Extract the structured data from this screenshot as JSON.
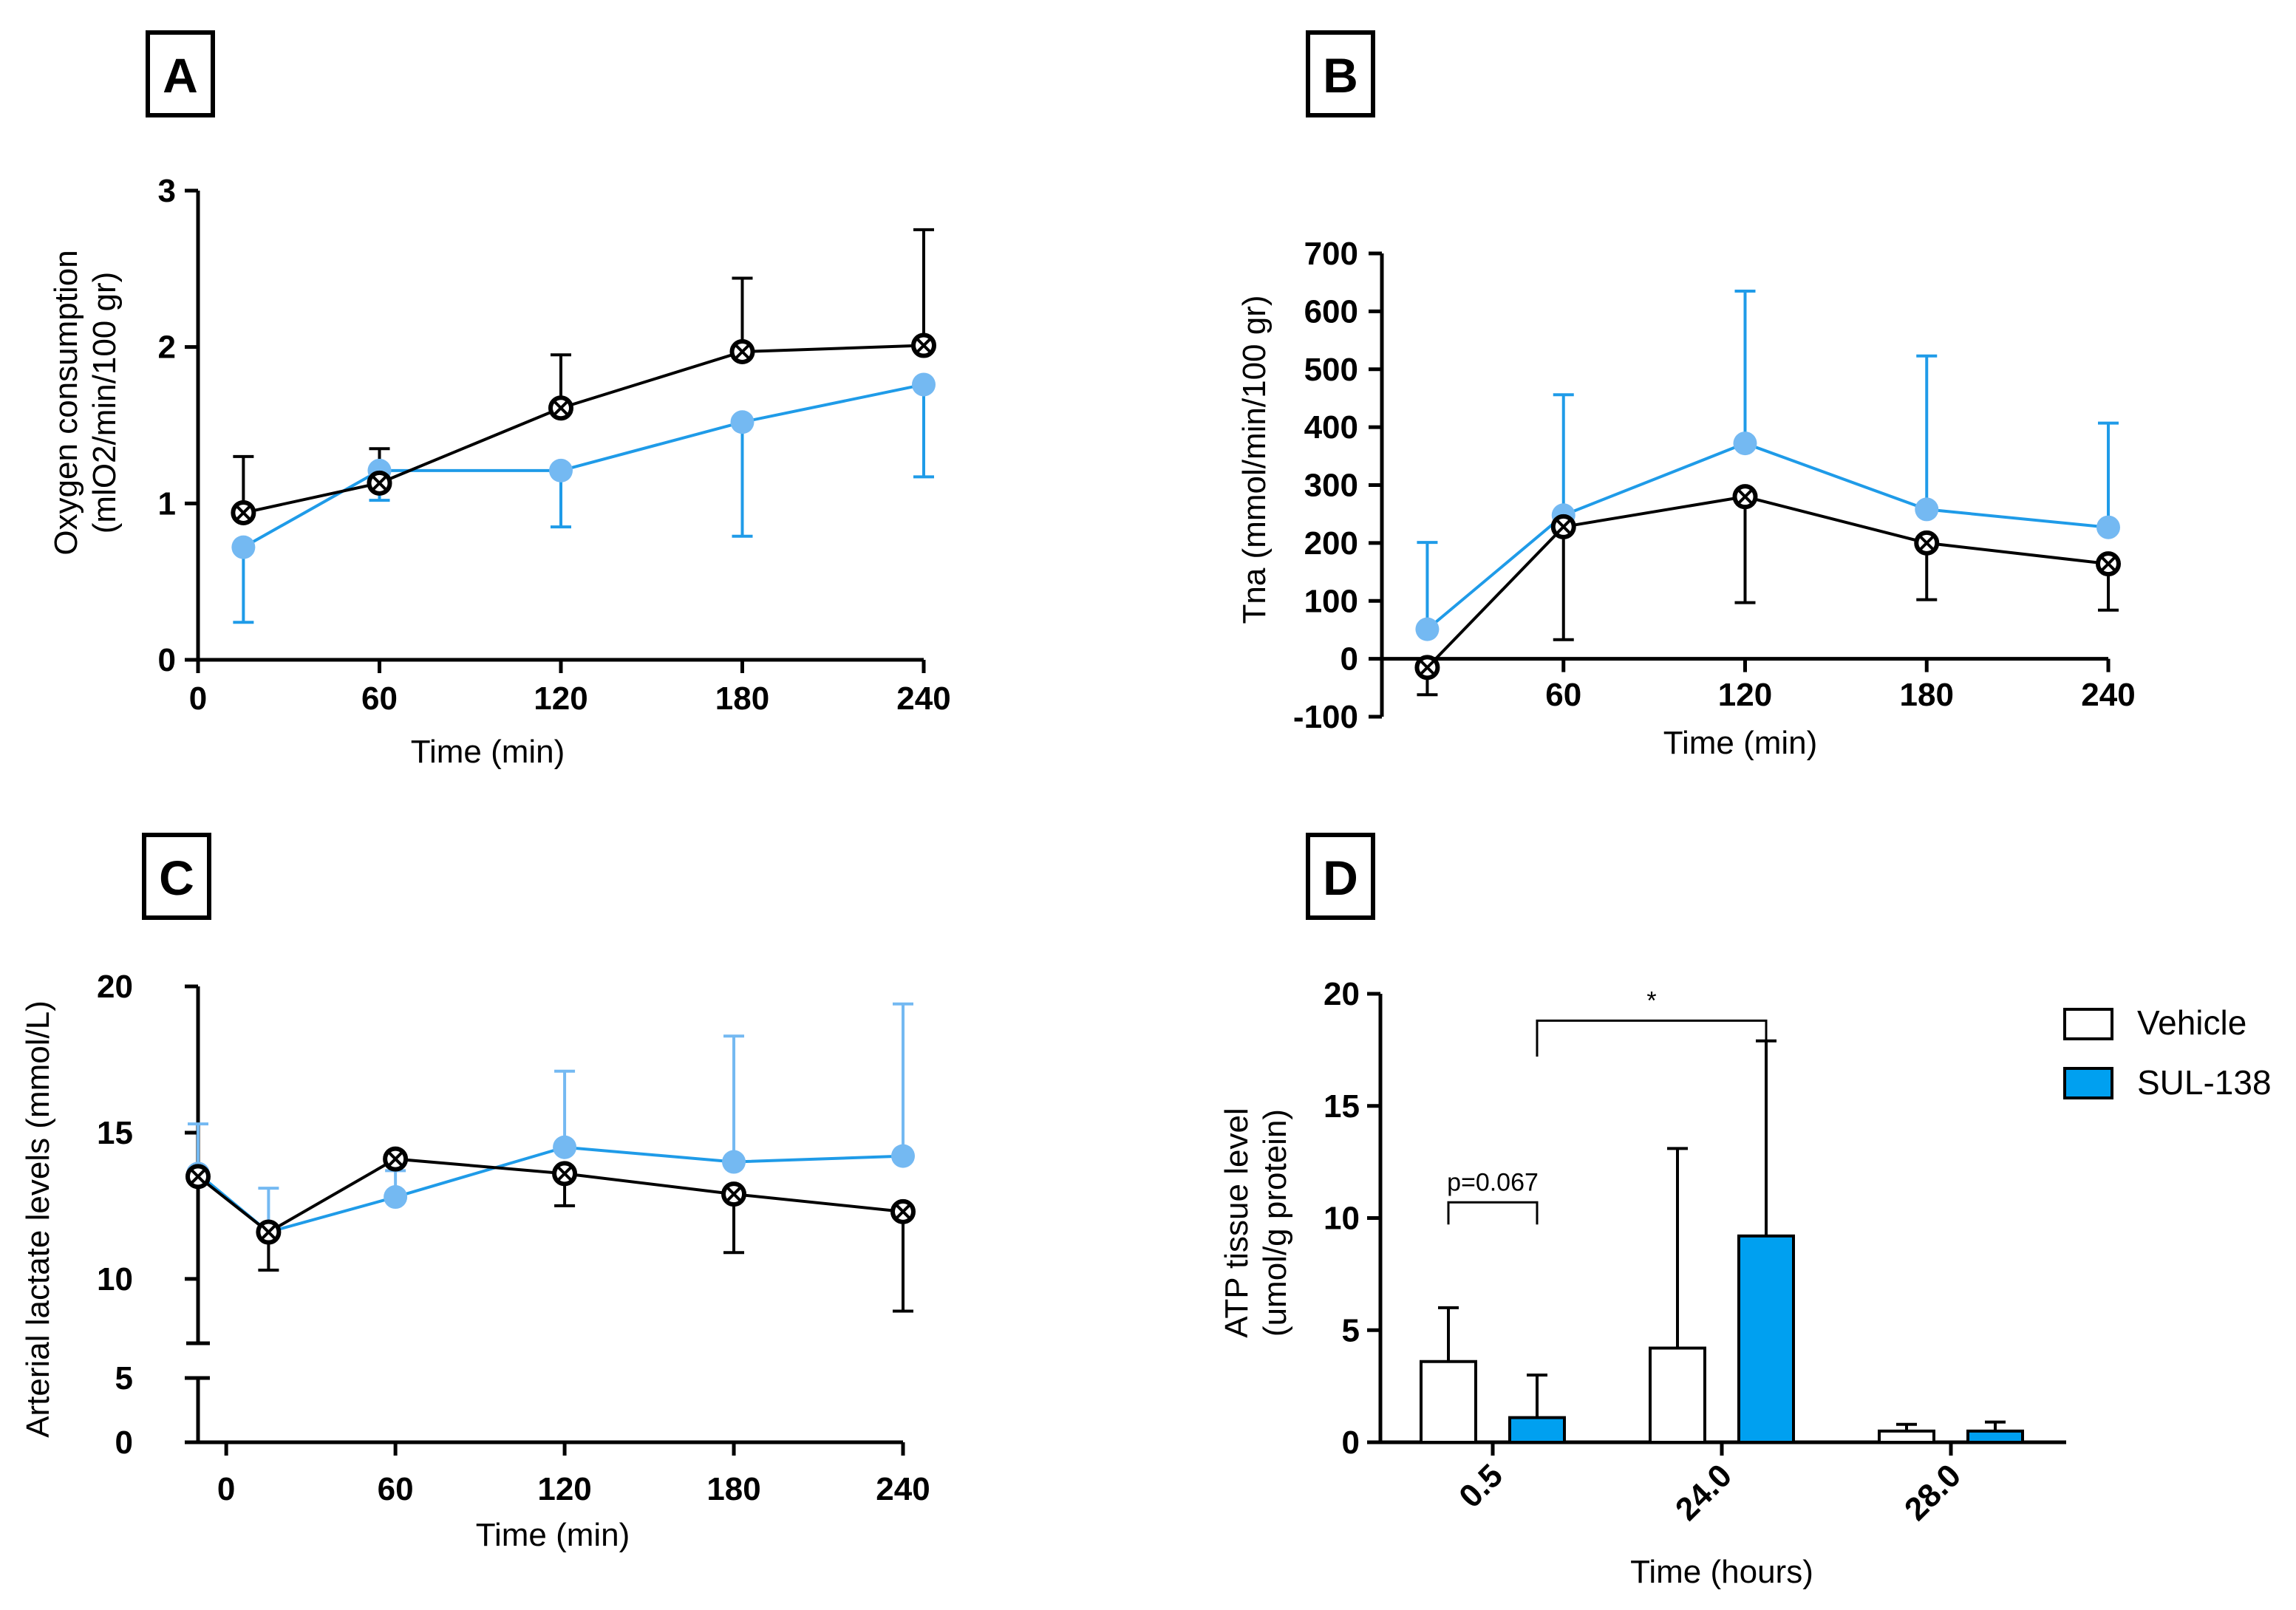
{
  "figure": {
    "panels": [
      "A",
      "B",
      "C",
      "D"
    ]
  },
  "chart_data": [
    {
      "id": "A",
      "type": "line",
      "title": "",
      "xlabel": "Time (min)",
      "ylabel": "Oxygen consumption (mlO2/min/100 gr)",
      "ylabel_lines": [
        "Oxygen consumption",
        "(mlO2/min/100 gr)"
      ],
      "xlim": [
        0,
        240
      ],
      "ylim": [
        0,
        3
      ],
      "xticks": [
        0,
        60,
        120,
        180,
        240
      ],
      "yticks": [
        0,
        1,
        2,
        3
      ],
      "series": [
        {
          "name": "SUL-138",
          "color": "#74b9f2",
          "errcolor": "#1f9be8",
          "marker": "filled-circle",
          "x": [
            15,
            60,
            120,
            180,
            240
          ],
          "y": [
            0.72,
            1.21,
            1.21,
            1.52,
            1.76
          ],
          "err_up": [
            null,
            null,
            null,
            null,
            null
          ],
          "err_down": [
            0.48,
            0.19,
            0.36,
            0.73,
            0.59
          ]
        },
        {
          "name": "Vehicle",
          "color": "#000000",
          "errcolor": "#000000",
          "marker": "circle-x",
          "x": [
            15,
            60,
            120,
            180,
            240
          ],
          "y": [
            0.94,
            1.13,
            1.61,
            1.97,
            2.01
          ],
          "err_up": [
            0.36,
            0.22,
            0.34,
            0.47,
            0.74
          ],
          "err_down": [
            null,
            null,
            null,
            null,
            null
          ]
        }
      ]
    },
    {
      "id": "B",
      "type": "line",
      "title": "",
      "xlabel": "Time (min)",
      "ylabel": "Tna (mmol/min/100 gr)",
      "ylabel_lines": [
        "Tna (mmol/min/100 gr)"
      ],
      "xlim": [
        0,
        240
      ],
      "ylim": [
        -100,
        700
      ],
      "xticks": [
        60,
        120,
        180,
        240
      ],
      "yticks": [
        -100,
        0,
        100,
        200,
        300,
        400,
        500,
        600,
        700
      ],
      "series": [
        {
          "name": "SUL-138",
          "color": "#74b9f2",
          "errcolor": "#1f9be8",
          "marker": "filled-circle",
          "x": [
            15,
            60,
            120,
            180,
            240
          ],
          "y": [
            51,
            248,
            372,
            258,
            227
          ],
          "err_up": [
            150,
            208,
            263,
            265,
            180
          ],
          "err_down": [
            null,
            null,
            null,
            null,
            null
          ]
        },
        {
          "name": "Vehicle",
          "color": "#000000",
          "errcolor": "#000000",
          "marker": "circle-x",
          "x": [
            15,
            60,
            120,
            180,
            240
          ],
          "y": [
            -15,
            228,
            280,
            200,
            164
          ],
          "err_up": [
            null,
            null,
            null,
            null,
            null
          ],
          "err_down": [
            47,
            195,
            183,
            98,
            80
          ]
        }
      ]
    },
    {
      "id": "C",
      "type": "line",
      "title": "",
      "xlabel": "Time (min)",
      "ylabel": "Arterial lactate levels (mmol/L)",
      "ylabel_lines": [
        "Arterial lactate levels (mmol/L)"
      ],
      "xlim": [
        -10,
        240
      ],
      "ylim": [
        0,
        20
      ],
      "axis_break": [
        5,
        7.8
      ],
      "xticks": [
        0,
        60,
        120,
        180,
        240
      ],
      "yticks": [
        0,
        5,
        10,
        15,
        20
      ],
      "series": [
        {
          "name": "SUL-138",
          "color": "#74b9f2",
          "errcolor": "#74b9f2",
          "marker": "filled-circle",
          "x": [
            -10,
            15,
            60,
            120,
            180,
            240
          ],
          "y": [
            13.6,
            11.6,
            12.8,
            14.5,
            14.0,
            14.2
          ],
          "err_up": [
            1.7,
            1.5,
            0.9,
            2.6,
            4.3,
            5.2
          ],
          "err_down": [
            null,
            null,
            null,
            null,
            null,
            null
          ]
        },
        {
          "name": "Vehicle",
          "color": "#000000",
          "errcolor": "#000000",
          "marker": "circle-x",
          "x": [
            -10,
            15,
            60,
            120,
            180,
            240
          ],
          "y": [
            13.5,
            11.6,
            14.1,
            13.6,
            12.9,
            12.3
          ],
          "err_up": [
            null,
            null,
            null,
            null,
            null,
            null
          ],
          "err_down": [
            5.7,
            1.3,
            null,
            1.1,
            2.0,
            3.4
          ]
        }
      ]
    },
    {
      "id": "D",
      "type": "bar",
      "title": "",
      "xlabel": "Time (hours)",
      "ylabel": "ATP tissue level (umol/g protein)",
      "ylabel_lines": [
        "ATP tissue level",
        "(umol/g protein)"
      ],
      "categories": [
        "0.5",
        "24.0",
        "28.0"
      ],
      "ylim": [
        0,
        20
      ],
      "yticks": [
        0,
        5,
        10,
        15,
        20
      ],
      "series": [
        {
          "name": "Vehicle",
          "color": "#ffffff",
          "values": [
            3.6,
            4.2,
            0.5
          ],
          "err_up": [
            2.4,
            8.9,
            0.3
          ]
        },
        {
          "name": "SUL-138",
          "color": "#00a0f0",
          "values": [
            1.1,
            9.2,
            0.5
          ],
          "err_up": [
            1.9,
            8.7,
            0.4
          ]
        }
      ],
      "legend": [
        "Vehicle",
        "SUL-138"
      ],
      "legend_position": "top-right",
      "annotations": [
        {
          "label": "p=0.067",
          "from": "0.5 Vehicle",
          "to": "0.5 SUL-138",
          "y": 10.7
        },
        {
          "label": "*",
          "from": "0.5 SUL-138",
          "to": "24.0 SUL-138",
          "y": 18.8
        }
      ]
    }
  ]
}
